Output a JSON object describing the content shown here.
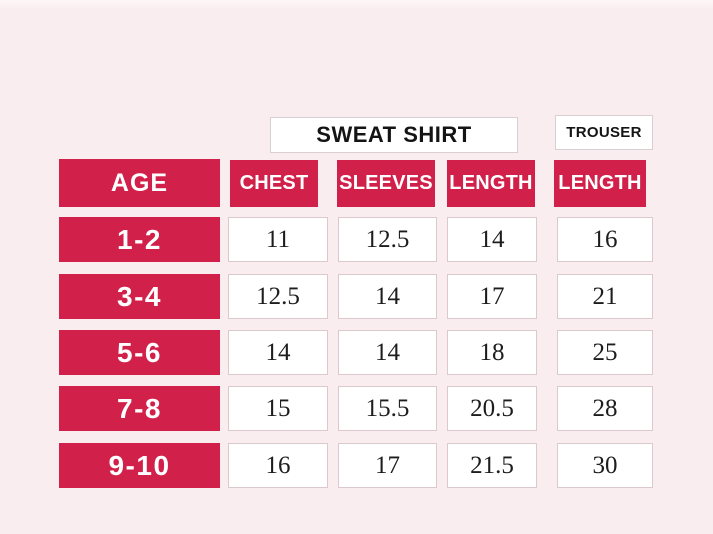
{
  "titles": {
    "sweatshirt": "SWEAT SHIRT",
    "trouser": "TROUSER"
  },
  "chart_data": {
    "type": "table",
    "title": "SWEAT SHIRT",
    "secondary_title": "TROUSER",
    "columns": [
      "AGE",
      "CHEST",
      "SLEEVES",
      "LENGTH",
      "LENGTH"
    ],
    "column_groups": {
      "sweatshirt_columns": [
        "CHEST",
        "SLEEVES",
        "LENGTH"
      ],
      "trouser_columns": [
        "LENGTH"
      ]
    },
    "rows": [
      {
        "age": "1-2",
        "chest": "11",
        "sleeves": "12.5",
        "length": "14",
        "trouser_length": "16"
      },
      {
        "age": "3-4",
        "chest": "12.5",
        "sleeves": "14",
        "length": "17",
        "trouser_length": "21"
      },
      {
        "age": "5-6",
        "chest": "14",
        "sleeves": "14",
        "length": "18",
        "trouser_length": "25"
      },
      {
        "age": "7-8",
        "chest": "15",
        "sleeves": "15.5",
        "length": "20.5",
        "trouser_length": "28"
      },
      {
        "age": "9-10",
        "chest": "16",
        "sleeves": "17",
        "length": "21.5",
        "trouser_length": "30"
      }
    ]
  },
  "colors": {
    "accent": "#d12049",
    "background": "#f9edef",
    "cell_background": "#ffffff",
    "cell_border": "#dcc9cd",
    "header_text": "#ffffff",
    "value_text": "#1d1d1d"
  }
}
